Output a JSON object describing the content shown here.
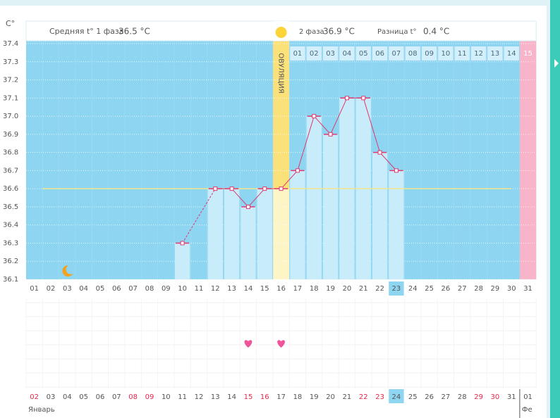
{
  "chart_data": {
    "type": "temperature",
    "y_label": "C°",
    "header": {
      "phase1_label": "Средняя t° 1 фаза",
      "phase1_value": "36.5 °C",
      "phase2_label": "2 фаза",
      "phase2_value": "36.9 °C",
      "diff_label": "Разница t°",
      "diff_value": "0.4 °C"
    },
    "ylim": [
      36.1,
      37.4
    ],
    "yticks": [
      36.1,
      36.2,
      36.3,
      36.4,
      36.5,
      36.6,
      36.7,
      36.8,
      36.9,
      {
        "value": 37,
        "label": "37.0"
      },
      37.1,
      37.2,
      37.3,
      37.4
    ],
    "categories": [
      "01",
      "02",
      "03",
      "04",
      "05",
      "06",
      "07",
      "08",
      "09",
      "10",
      "11",
      "12",
      "13",
      "14",
      "15",
      "16",
      "17",
      "18",
      "19",
      "20",
      "21",
      "22",
      "23",
      "24",
      "25",
      "26",
      "27",
      "28",
      "29",
      "30",
      "31"
    ],
    "values": [
      null,
      null,
      null,
      null,
      null,
      null,
      null,
      null,
      null,
      36.3,
      null,
      36.6,
      36.6,
      36.5,
      36.6,
      36.6,
      36.7,
      37.0,
      36.9,
      37.1,
      37.1,
      36.8,
      36.7,
      null,
      null,
      null,
      null,
      null,
      null,
      null,
      null
    ],
    "mean_line": 36.6,
    "ovulation_index": 15,
    "ovulation_label": "ОВУЛЯЦИЯ",
    "phase2_start": 16,
    "phase2_days": [
      "01",
      "02",
      "03",
      "04",
      "05",
      "06",
      "07",
      "08",
      "09",
      "10",
      "11",
      "12",
      "13",
      "14",
      "15"
    ],
    "today_index": 22,
    "moon_index": 2,
    "calendar": {
      "dates": [
        "02",
        "03",
        "04",
        "05",
        "06",
        "07",
        "08",
        "09",
        "10",
        "11",
        "12",
        "13",
        "14",
        "15",
        "16",
        "17",
        "18",
        "19",
        "20",
        "21",
        "22",
        "23",
        "24",
        "25",
        "26",
        "27",
        "28",
        "29",
        "30",
        "31",
        "01"
      ],
      "red": [
        0,
        6,
        7,
        13,
        14,
        20,
        21,
        27,
        28
      ],
      "highlight": 22,
      "hearts": [
        13,
        15
      ],
      "months": [
        {
          "label": "Январь",
          "start": 0
        },
        {
          "label": "Фе",
          "start": 30
        }
      ]
    }
  }
}
